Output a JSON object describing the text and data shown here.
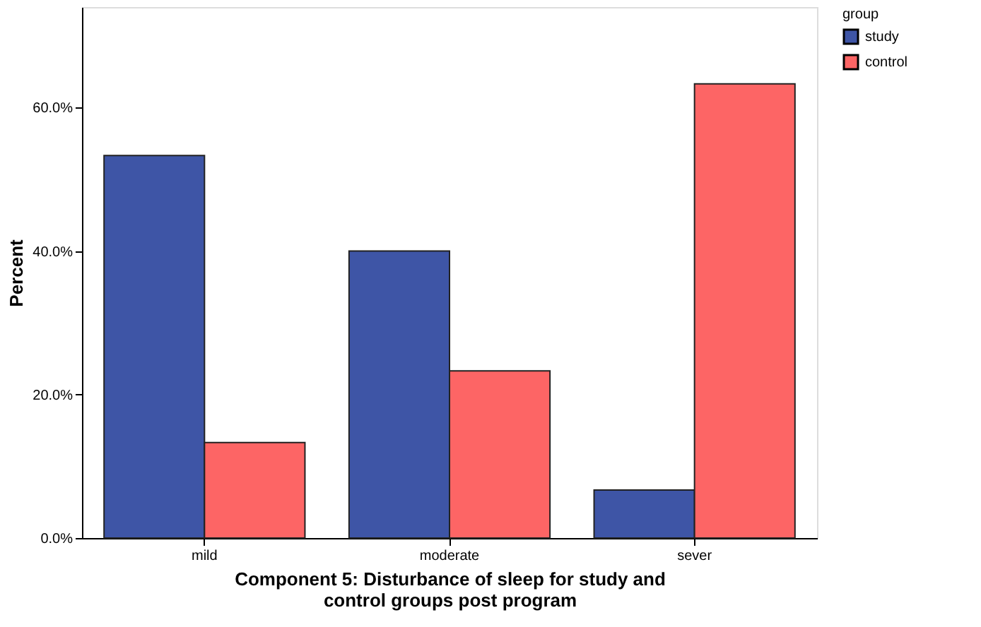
{
  "chart_data": {
    "type": "bar",
    "xlabel": "Component 5: Disturbance of sleep for study and\ncontrol groups post program",
    "ylabel": "Percent",
    "legend_title": "group",
    "categories": [
      "mild",
      "moderate",
      "sever"
    ],
    "series": [
      {
        "name": "study",
        "color": "#3e55a6",
        "values": [
          53.3,
          40.0,
          6.7
        ]
      },
      {
        "name": "control",
        "color": "#fd6565",
        "values": [
          13.3,
          23.3,
          63.3
        ]
      }
    ],
    "ylim": [
      0,
      74
    ],
    "yticks": [
      {
        "value": 0,
        "label": "0.0%"
      },
      {
        "value": 20,
        "label": "20.0%"
      },
      {
        "value": 40,
        "label": "40.0%"
      },
      {
        "value": 60,
        "label": "60.0%"
      }
    ],
    "grid": false,
    "legend": "top right"
  }
}
